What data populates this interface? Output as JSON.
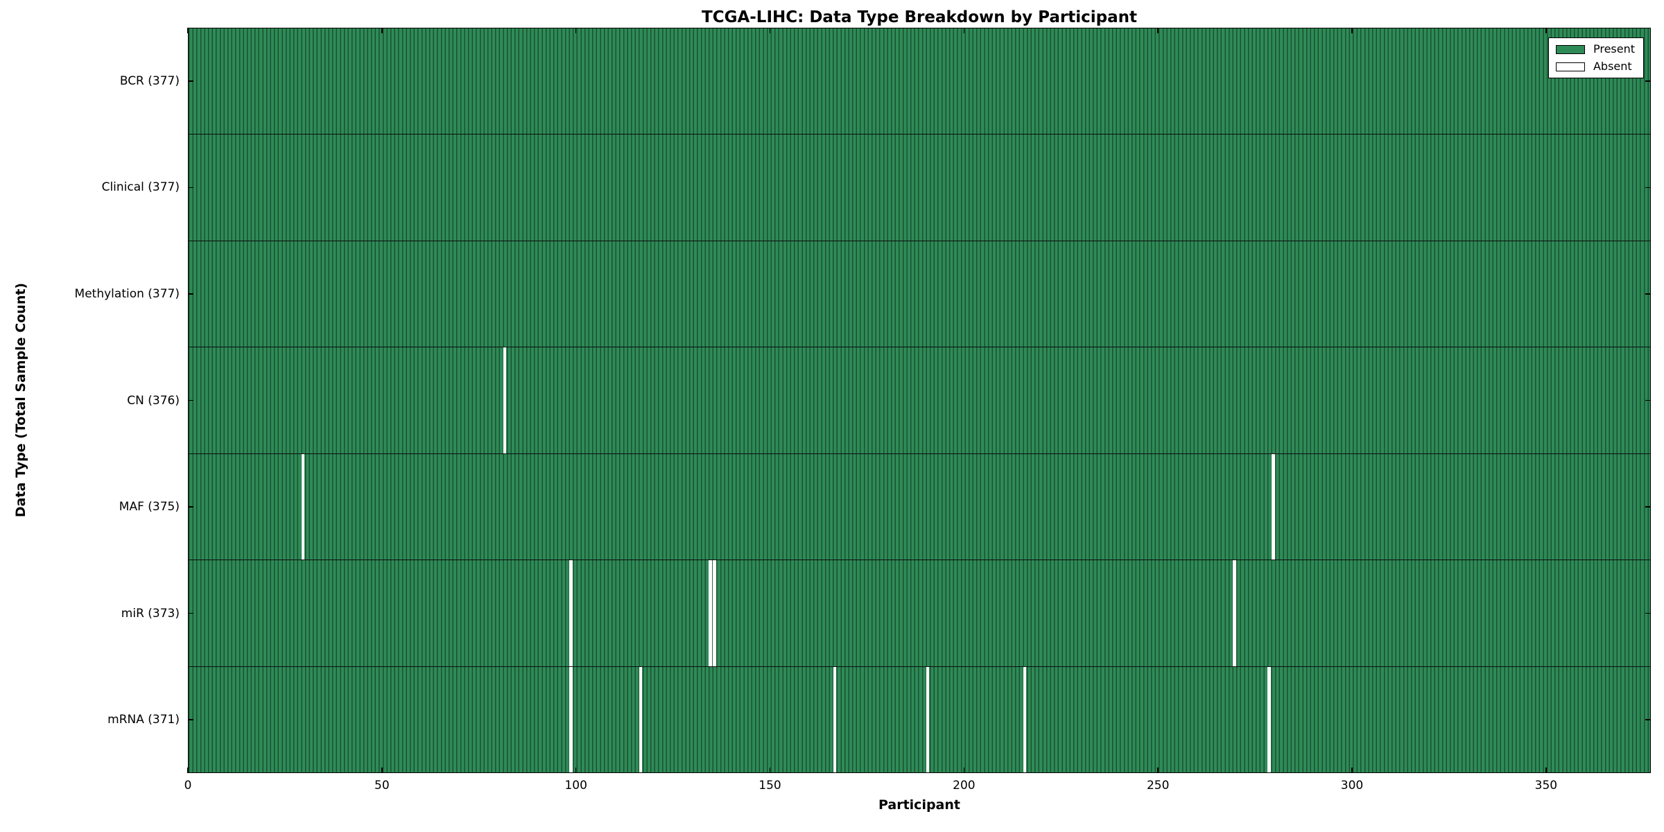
{
  "chart_data": {
    "type": "heatmap",
    "title": "TCGA-LIHC: Data Type Breakdown by Participant",
    "xlabel": "Participant",
    "ylabel": "Data Type (Total Sample Count)",
    "n_participants": 377,
    "xlim": [
      0,
      377
    ],
    "x_ticks": [
      0,
      50,
      100,
      150,
      200,
      250,
      300,
      350
    ],
    "legend_position": "upper right",
    "legend": [
      {
        "label": "Present",
        "color": "#2E8B57"
      },
      {
        "label": "Absent",
        "color": "#FFFFFF"
      }
    ],
    "rows": [
      {
        "data_type": "BCR",
        "label": "BCR (377)",
        "present_count": 377,
        "absent_participants": []
      },
      {
        "data_type": "Clinical",
        "label": "Clinical (377)",
        "present_count": 377,
        "absent_participants": []
      },
      {
        "data_type": "Methylation",
        "label": "Methylation (377)",
        "present_count": 377,
        "absent_participants": []
      },
      {
        "data_type": "CN",
        "label": "CN (376)",
        "present_count": 376,
        "absent_participants": [
          81
        ]
      },
      {
        "data_type": "MAF",
        "label": "MAF (375)",
        "present_count": 375,
        "absent_participants": [
          29,
          279
        ]
      },
      {
        "data_type": "miR",
        "label": "miR (373)",
        "present_count": 373,
        "absent_participants": [
          98,
          134,
          135,
          269
        ]
      },
      {
        "data_type": "mRNA",
        "label": "mRNA (371)",
        "present_count": 371,
        "absent_participants": [
          98,
          116,
          166,
          190,
          215,
          278
        ]
      }
    ]
  },
  "colors": {
    "present": "#2E8B57",
    "absent": "#FFFFFF",
    "axis": "#000000"
  }
}
